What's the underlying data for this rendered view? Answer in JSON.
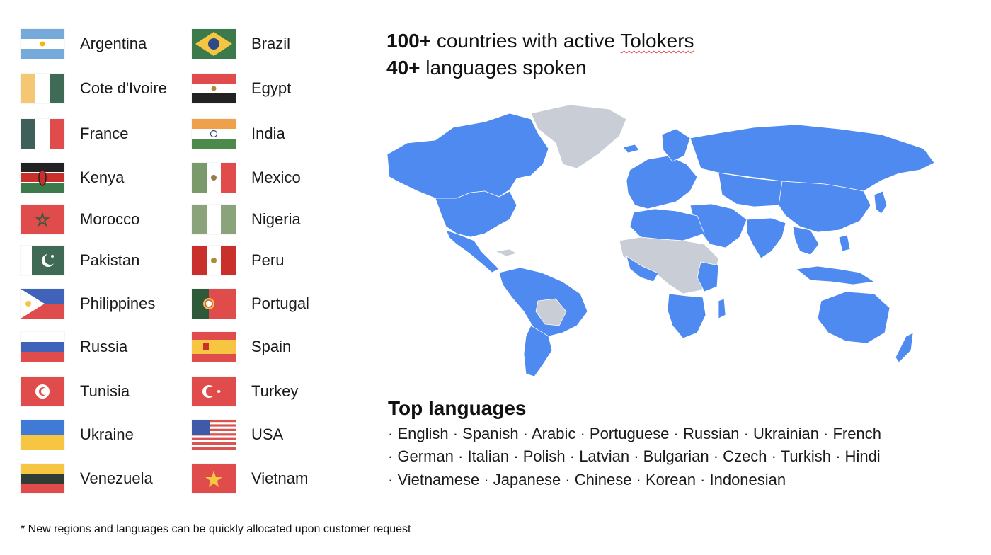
{
  "headline": {
    "line1_bold": "100+",
    "line1_rest": "countries with active",
    "line1_word": "Tolokers",
    "line2_bold": "40+",
    "line2_rest": "languages spoken"
  },
  "countries": {
    "left": [
      {
        "name": "Argentina",
        "flag": "argentina-flag-icon"
      },
      {
        "name": "Cote d'Ivoire",
        "flag": "cote-divoire-flag-icon"
      },
      {
        "name": "France",
        "flag": "france-flag-icon"
      },
      {
        "name": "Kenya",
        "flag": "kenya-flag-icon"
      },
      {
        "name": "Morocco",
        "flag": "morocco-flag-icon"
      },
      {
        "name": "Pakistan",
        "flag": "pakistan-flag-icon"
      },
      {
        "name": "Philippines",
        "flag": "philippines-flag-icon"
      },
      {
        "name": "Russia",
        "flag": "russia-flag-icon"
      },
      {
        "name": "Tunisia",
        "flag": "tunisia-flag-icon"
      },
      {
        "name": "Ukraine",
        "flag": "ukraine-flag-icon"
      },
      {
        "name": "Venezuela",
        "flag": "venezuela-flag-icon"
      }
    ],
    "right": [
      {
        "name": "Brazil",
        "flag": "brazil-flag-icon"
      },
      {
        "name": "Egypt",
        "flag": "egypt-flag-icon"
      },
      {
        "name": "India",
        "flag": "india-flag-icon"
      },
      {
        "name": "Mexico",
        "flag": "mexico-flag-icon"
      },
      {
        "name": "Nigeria",
        "flag": "nigeria-flag-icon"
      },
      {
        "name": "Peru",
        "flag": "peru-flag-icon"
      },
      {
        "name": "Portugal",
        "flag": "portugal-flag-icon"
      },
      {
        "name": "Spain",
        "flag": "spain-flag-icon"
      },
      {
        "name": "Turkey",
        "flag": "turkey-flag-icon"
      },
      {
        "name": "USA",
        "flag": "usa-flag-icon"
      },
      {
        "name": "Vietnam",
        "flag": "vietnam-flag-icon"
      }
    ]
  },
  "map": {
    "active_color": "#4f8af0",
    "inactive_color": "#c9cdd6"
  },
  "top_languages": {
    "title": "Top languages",
    "lines": [
      "· English · Spanish · Arabic · Portuguese · Russian · Ukrainian · French",
      "· German · Italian · Polish · Latvian · Bulgarian · Czech · Turkish · Hindi",
      "· Vietnamese · Japanese · Chinese · Korean · Indonesian"
    ]
  },
  "footnote": "* New regions and languages can be quickly allocated upon customer request"
}
